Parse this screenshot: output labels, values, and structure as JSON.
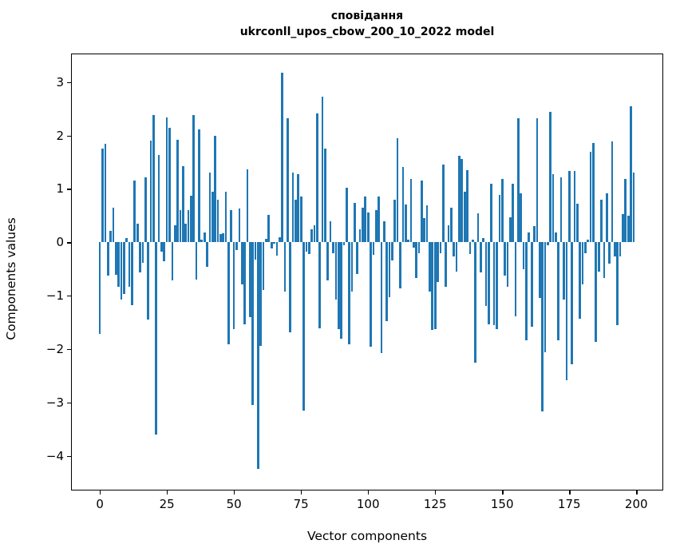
{
  "figure": {
    "title_line1": "сповідання",
    "title_line2": "ukrconll_upos_cbow_200_10_2022 model"
  },
  "chart_data": {
    "type": "bar",
    "title": "сповідання",
    "subtitle": "ukrconll_upos_cbow_200_10_2022 model",
    "xlabel": "Vector components",
    "ylabel": "Components values",
    "x_start": 0,
    "n_bars": 200,
    "xlim": [
      -10.45,
      209.45
    ],
    "ylim": [
      -4.62,
      3.52
    ],
    "xticks": [
      0,
      25,
      50,
      75,
      100,
      125,
      150,
      175,
      200
    ],
    "yticks": [
      3,
      2,
      1,
      0,
      -1,
      -2,
      -3,
      -4
    ],
    "grid": false,
    "legend": null,
    "bar_color": "#1f77b4",
    "values": [
      -1.72,
      1.75,
      1.84,
      -0.63,
      0.22,
      0.65,
      -0.61,
      -0.84,
      -1.07,
      -0.97,
      0.08,
      -0.83,
      -1.18,
      1.15,
      0.35,
      -0.56,
      -0.39,
      1.22,
      -1.45,
      1.9,
      2.39,
      -3.6,
      1.64,
      -0.17,
      -0.35,
      2.34,
      2.14,
      -0.72,
      0.32,
      1.92,
      0.6,
      1.43,
      0.35,
      0.6,
      0.87,
      2.38,
      -0.7,
      2.12,
      0.05,
      0.18,
      -0.46,
      1.31,
      0.94,
      1.99,
      0.79,
      0.15,
      0.17,
      0.95,
      -1.91,
      0.6,
      -1.63,
      -0.15,
      0.63,
      -0.79,
      -1.54,
      1.37,
      -1.4,
      -3.05,
      -0.33,
      -4.25,
      -1.94,
      -0.89,
      0.07,
      0.51,
      -0.12,
      -0.03,
      -0.25,
      0.1,
      3.17,
      -0.92,
      2.32,
      -1.68,
      1.31,
      0.8,
      1.28,
      0.85,
      -3.15,
      -0.17,
      -0.22,
      0.24,
      0.32,
      2.42,
      -1.61,
      2.72,
      1.75,
      -0.72,
      0.4,
      -0.2,
      -1.07,
      -1.63,
      -1.81,
      -0.05,
      1.02,
      -1.91,
      -0.92,
      0.74,
      -0.6,
      0.24,
      0.65,
      0.85,
      0.55,
      -1.95,
      -0.23,
      0.6,
      0.85,
      -2.07,
      0.4,
      -1.48,
      -1.03,
      -0.34,
      0.79,
      1.95,
      -0.87,
      1.41,
      0.7,
      0.05,
      1.19,
      -0.1,
      -0.67,
      -0.2,
      1.15,
      0.45,
      0.69,
      -0.92,
      -1.64,
      -1.63,
      -0.74,
      -0.2,
      1.46,
      -0.84,
      0.32,
      0.64,
      -0.27,
      -0.55,
      1.62,
      1.56,
      0.94,
      1.35,
      -0.22,
      0.05,
      -2.25,
      0.54,
      -0.57,
      0.08,
      -1.19,
      -1.54,
      1.1,
      -1.56,
      -1.63,
      0.88,
      1.19,
      -0.62,
      -0.84,
      0.47,
      1.09,
      -1.39,
      2.32,
      0.92,
      -0.5,
      -1.84,
      0.19,
      -1.59,
      0.3,
      2.32,
      -1.04,
      -3.17,
      -2.06,
      -0.05,
      2.44,
      1.27,
      0.19,
      -1.83,
      1.22,
      -1.07,
      -2.58,
      1.34,
      -2.28,
      1.33,
      0.72,
      -1.44,
      -0.79,
      -0.2,
      0.05,
      1.7,
      1.86,
      -1.86,
      -0.55,
      0.79,
      -0.67,
      0.92,
      -0.4,
      1.89,
      -0.27,
      -1.56,
      -0.26,
      0.53,
      1.18,
      0.5,
      2.55,
      1.31
    ]
  }
}
